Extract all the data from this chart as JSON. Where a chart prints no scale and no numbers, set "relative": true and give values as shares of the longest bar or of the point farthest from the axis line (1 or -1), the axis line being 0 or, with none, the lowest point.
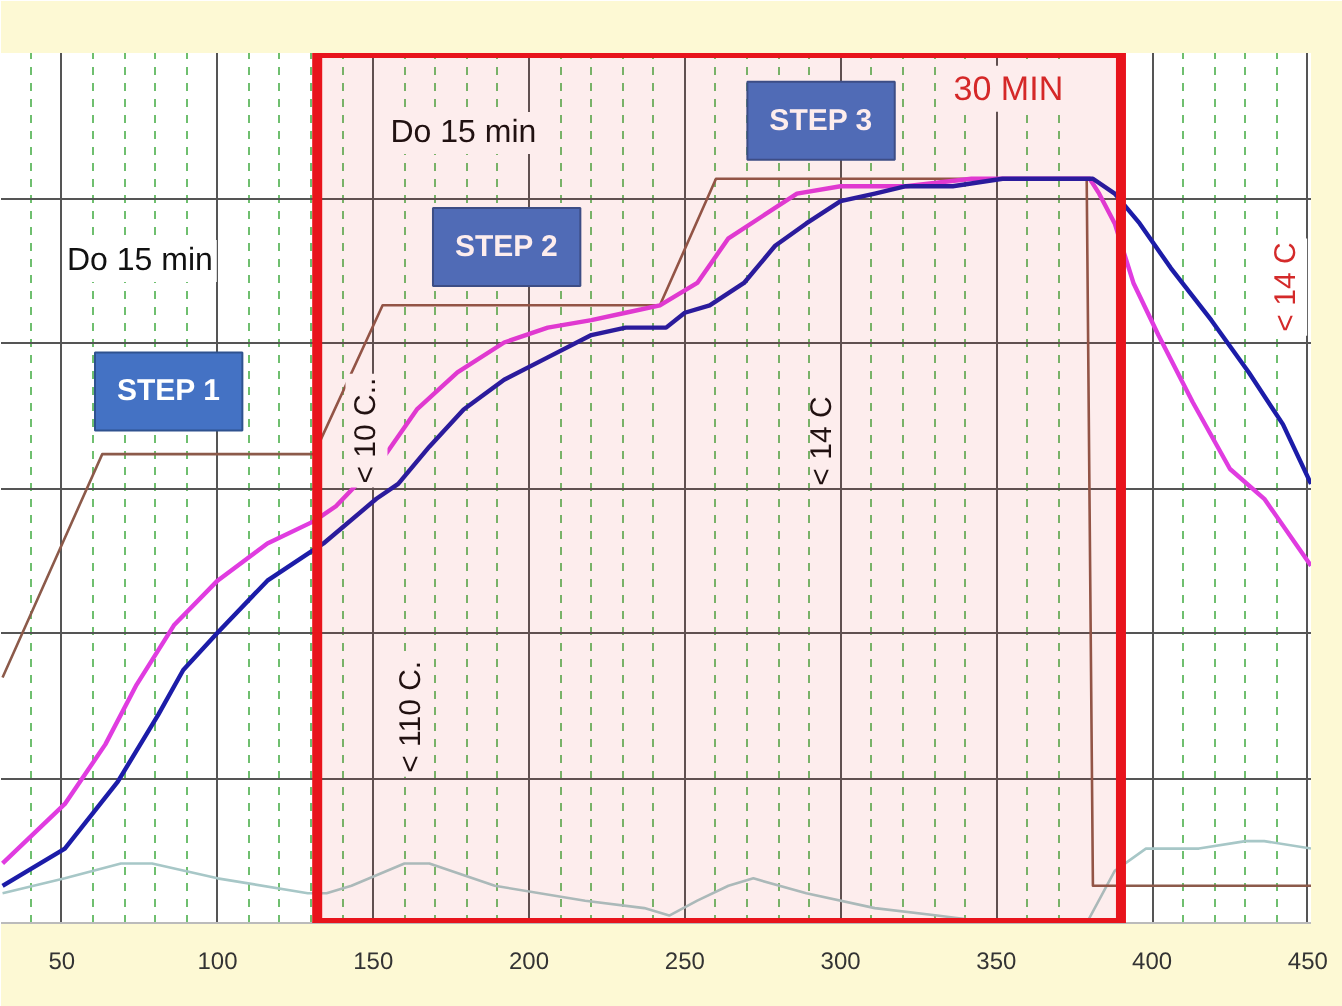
{
  "chart_data": {
    "type": "line",
    "relative": true,
    "xlim": [
      30.5,
      451
    ],
    "xticks": [
      {
        "value": 40,
        "label": null
      },
      50,
      {
        "value": 60,
        "label": null
      },
      {
        "value": 70,
        "label": null
      },
      {
        "value": 80,
        "label": null
      },
      {
        "value": 90,
        "label": null
      },
      100,
      {
        "value": 110,
        "label": null
      },
      {
        "value": 120,
        "label": null
      },
      {
        "value": 130,
        "label": null
      },
      {
        "value": 140,
        "label": null
      },
      150,
      {
        "value": 160,
        "label": null
      },
      {
        "value": 170,
        "label": null
      },
      {
        "value": 180,
        "label": null
      },
      {
        "value": 190,
        "label": null
      },
      200,
      {
        "value": 210,
        "label": null
      },
      {
        "value": 220,
        "label": null
      },
      {
        "value": 230,
        "label": null
      },
      {
        "value": 240,
        "label": null
      },
      250,
      {
        "value": 260,
        "label": null
      },
      {
        "value": 270,
        "label": null
      },
      {
        "value": 280,
        "label": null
      },
      {
        "value": 290,
        "label": null
      },
      300,
      {
        "value": 310,
        "label": null
      },
      {
        "value": 320,
        "label": null
      },
      {
        "value": 330,
        "label": null
      },
      {
        "value": 340,
        "label": null
      },
      350,
      {
        "value": 360,
        "label": null
      },
      {
        "value": 370,
        "label": null
      },
      {
        "value": 390,
        "label": null
      },
      400,
      {
        "value": 410,
        "label": null
      },
      {
        "value": 420,
        "label": null
      },
      {
        "value": 430,
        "label": null
      },
      {
        "value": 440,
        "label": null
      },
      450
    ],
    "grid": true,
    "line_style": "solid",
    "series": [
      {
        "color": "#8c5a4a",
        "x": [
          31,
          63,
          131,
          153,
          242,
          260,
          379,
          381,
          451
        ],
        "values": [
          0.33,
          0.63,
          0.63,
          0.83,
          0.83,
          1.0,
          1.0,
          0.05,
          0.05
        ]
      },
      {
        "color": "#e03ce0",
        "x": [
          31,
          51,
          64,
          74,
          86,
          100,
          116,
          131,
          138,
          154,
          164,
          177,
          192,
          206,
          220,
          231,
          242,
          254,
          264,
          275,
          286,
          300,
          321,
          342,
          363,
          380,
          383,
          388,
          394,
          402,
          413,
          425,
          436,
          451
        ],
        "values": [
          0.08,
          0.16,
          0.24,
          0.32,
          0.4,
          0.46,
          0.51,
          0.54,
          0.56,
          0.63,
          0.69,
          0.74,
          0.78,
          0.8,
          0.81,
          0.82,
          0.83,
          0.86,
          0.92,
          0.95,
          0.98,
          0.99,
          0.99,
          1.0,
          1.0,
          1.0,
          0.98,
          0.94,
          0.86,
          0.79,
          0.7,
          0.61,
          0.57,
          0.48
        ]
      },
      {
        "color": "#1c1ca8",
        "x": [
          31,
          51,
          68,
          81,
          89,
          100,
          116,
          134,
          151,
          158,
          168,
          179,
          192,
          206,
          220,
          231,
          244,
          250,
          258,
          269,
          279,
          289,
          300,
          311,
          321,
          336,
          352,
          381,
          388,
          396,
          406,
          419,
          431,
          442,
          451
        ],
        "values": [
          0.05,
          0.1,
          0.19,
          0.28,
          0.34,
          0.39,
          0.46,
          0.51,
          0.57,
          0.59,
          0.64,
          0.69,
          0.73,
          0.76,
          0.79,
          0.8,
          0.8,
          0.82,
          0.83,
          0.86,
          0.91,
          0.94,
          0.97,
          0.98,
          0.99,
          0.99,
          1.0,
          1.0,
          0.98,
          0.94,
          0.88,
          0.81,
          0.74,
          0.67,
          0.59
        ]
      },
      {
        "color": "#a7c7c7",
        "x": [
          31,
          51,
          69,
          79,
          100,
          129,
          135,
          143,
          160,
          168,
          189,
          218,
          237,
          245,
          254,
          264,
          272,
          289,
          311,
          331,
          350,
          379,
          388,
          398,
          415,
          430,
          436,
          451
        ],
        "values": [
          0.04,
          0.06,
          0.08,
          0.08,
          0.06,
          0.04,
          0.04,
          0.05,
          0.08,
          0.08,
          0.05,
          0.03,
          0.02,
          0.01,
          0.03,
          0.05,
          0.06,
          0.04,
          0.02,
          0.01,
          0.0,
          0.0,
          0.07,
          0.1,
          0.1,
          0.11,
          0.11,
          0.1
        ]
      }
    ],
    "bands": [
      {
        "axis": "x",
        "from": 132,
        "to": 390,
        "color": "#e8141c"
      }
    ],
    "annotations": [
      "STEP 1",
      "STEP 2",
      "STEP 3",
      "Do 15 min",
      "Do 15 min",
      "30 MIN",
      "< 10 C..",
      "< 110 C.",
      "< 14 C",
      "< 14 C"
    ]
  }
}
